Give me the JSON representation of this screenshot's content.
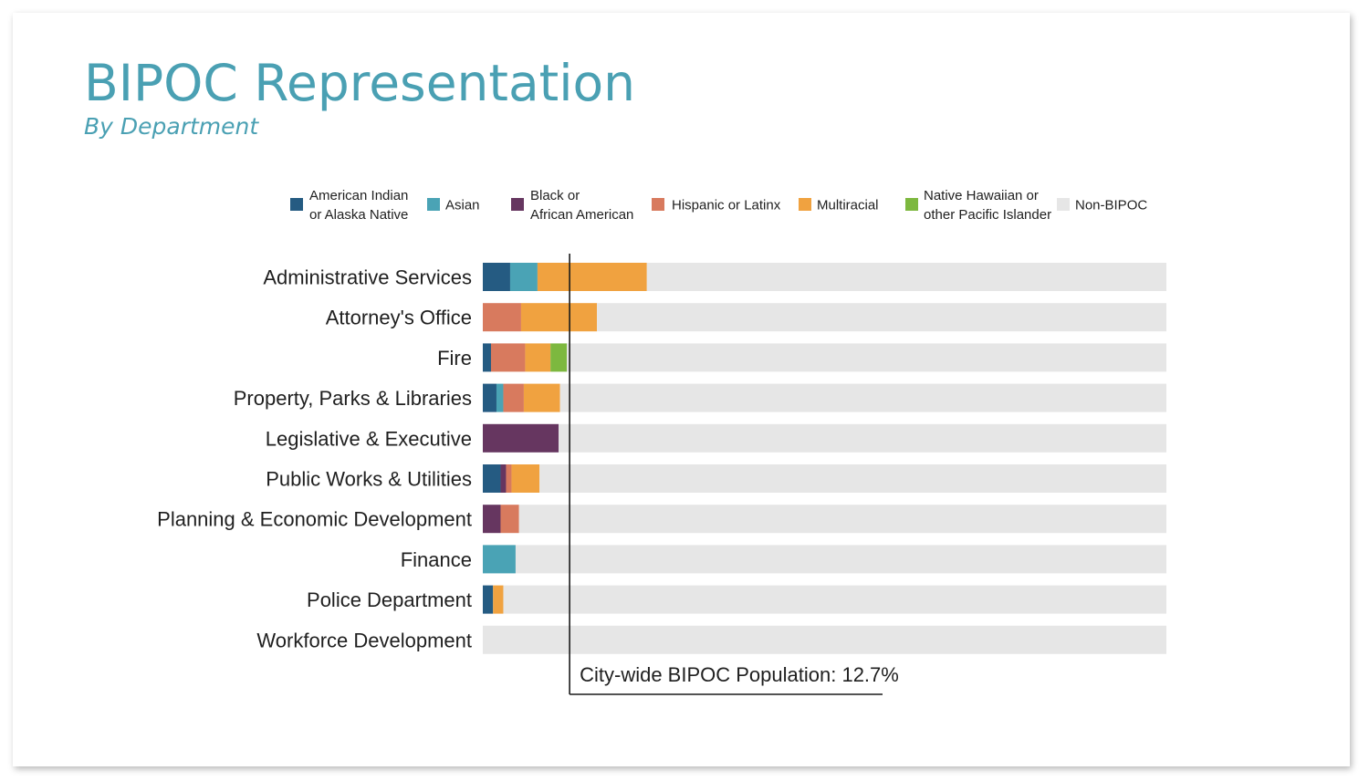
{
  "title": "BIPOC Representation",
  "subtitle": "By Department",
  "chart_data": {
    "type": "bar",
    "orientation": "horizontal",
    "stacked": true,
    "xlim": [
      0,
      100
    ],
    "unit": "%",
    "legend_position": "top",
    "categories": [
      "Administrative Services",
      "Attorney's Office",
      "Fire",
      "Property, Parks & Libraries",
      "Legislative & Executive",
      "Public Works & Utilities",
      "Planning & Economic Development",
      "Finance",
      "Police Department",
      "Workforce Development"
    ],
    "series": [
      {
        "name": "American Indian or Alaska Native",
        "legend_lines": [
          "American Indian",
          "or Alaska Native"
        ],
        "color": "#255b82",
        "values": [
          4.0,
          0.0,
          1.2,
          2.0,
          0.0,
          2.6,
          0.0,
          0.0,
          1.5,
          0.0
        ]
      },
      {
        "name": "Asian",
        "legend_lines": [
          "Asian"
        ],
        "color": "#4aa3b5",
        "values": [
          4.0,
          0.0,
          0.0,
          1.0,
          0.0,
          0.0,
          0.0,
          4.8,
          0.0,
          0.0
        ]
      },
      {
        "name": "Black or African American",
        "legend_lines": [
          "Black or",
          "African American"
        ],
        "color": "#663660",
        "values": [
          0.0,
          0.0,
          0.0,
          0.0,
          11.1,
          0.8,
          2.6,
          0.0,
          0.0,
          0.0
        ]
      },
      {
        "name": "Hispanic or Latinx",
        "legend_lines": [
          "Hispanic or Latinx"
        ],
        "color": "#d87a5e",
        "values": [
          0.0,
          5.6,
          5.0,
          3.0,
          0.0,
          0.8,
          2.7,
          0.0,
          0.0,
          0.0
        ]
      },
      {
        "name": "Multiracial",
        "legend_lines": [
          "Multiracial"
        ],
        "color": "#f0a240",
        "values": [
          16.0,
          11.1,
          3.7,
          5.3,
          0.0,
          4.1,
          0.0,
          0.0,
          1.5,
          0.0
        ]
      },
      {
        "name": "Native Hawaiian or other Pacific Islander",
        "legend_lines": [
          "Native Hawaiian or",
          "other Pacific Islander"
        ],
        "color": "#7db83f",
        "values": [
          0.0,
          0.0,
          2.4,
          0.0,
          0.0,
          0.0,
          0.0,
          0.0,
          0.0,
          0.0
        ]
      },
      {
        "name": "Non-BIPOC",
        "legend_lines": [
          "Non-BIPOC"
        ],
        "color": "#e6e6e6",
        "values": [
          76.0,
          83.3,
          87.7,
          88.7,
          88.9,
          91.7,
          94.7,
          95.2,
          97.0,
          100.0
        ]
      }
    ],
    "reference_line": {
      "value": 12.7,
      "label": "City-wide BIPOC Population: 12.7%"
    }
  }
}
